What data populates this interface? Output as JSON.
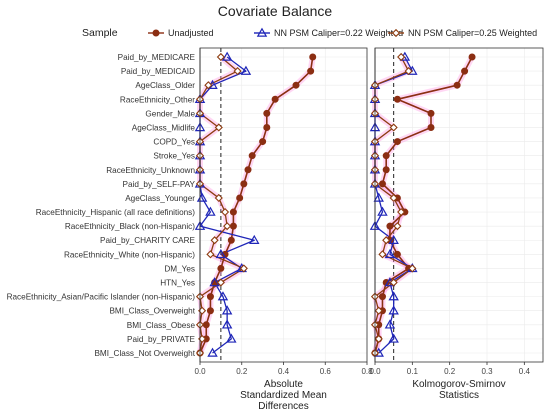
{
  "chart_data": {
    "type": "line",
    "title": "Covariate Balance",
    "legend": {
      "title": "Sample",
      "placement": "top",
      "entries": [
        "Unadjusted",
        "NN PSM Caliper=0.22 Weighted",
        "NN PSM Caliper=0.25 Weighted"
      ]
    },
    "colors": {
      "Unadjusted": "#8b2e12",
      "NN PSM Caliper=0.22 Weighted": "#1f26b8",
      "NN PSM Caliper=0.25 Weighted": "#8c3c10",
      "band": "#ff8ce0",
      "threshold": "#222222"
    },
    "categories": [
      "Paid_by_MEDICARE",
      "Paid_by_MEDICAID",
      "AgeClass_Older",
      "RaceEthnicity_Other",
      "Gender_Male",
      "AgeClass_Midlife",
      "COPD_Yes",
      "Stroke_Yes",
      "RaceEthnicity_Unknown",
      "Paid_by_SELF-PAY",
      "AgeClass_Younger",
      "RaceEthnicity_Hispanic (all race definitions)",
      "RaceEthnicity_Black (non-Hispanic)",
      "Paid_by_CHARITY CARE",
      "RaceEthnicity_White (non-Hispanic)",
      "DM_Yes",
      "HTN_Yes",
      "RaceEthnicity_Asian/Pacific Islander (non-Hispanic)",
      "BMI_Class_Overweight",
      "BMI_Class_Obese",
      "Paid_by_PRIVATE",
      "BMI_Class_Not Overweight"
    ],
    "panels": [
      {
        "xlabel": "Absolute Standardized Mean Differences",
        "xlabel_lines": [
          "Absolute",
          "Standardized Mean",
          "Differences"
        ],
        "xlim": [
          0,
          0.8
        ],
        "xticks": [
          0.0,
          0.2,
          0.4,
          0.6,
          0.8
        ],
        "tick_labels": [
          "0.0",
          "0.2",
          "0.4",
          "0.6",
          "0.8"
        ],
        "threshold": 0.1,
        "series": [
          {
            "name": "Unadjusted",
            "values": [
              0.54,
              0.53,
              0.46,
              0.36,
              0.32,
              0.32,
              0.3,
              0.25,
              0.23,
              0.21,
              0.19,
              0.16,
              0.16,
              0.15,
              0.12,
              0.1,
              0.07,
              0.05,
              0.05,
              0.03,
              0.03,
              0.0
            ]
          },
          {
            "name": "NN PSM Caliper=0.22 Weighted",
            "values": [
              0.13,
              0.22,
              0.06,
              0.0,
              0.0,
              0.0,
              0.0,
              0.0,
              0.0,
              0.0,
              0.01,
              0.05,
              0.0,
              0.26,
              0.1,
              0.2,
              0.07,
              0.11,
              0.13,
              0.13,
              0.15,
              0.06
            ]
          },
          {
            "name": "NN PSM Caliper=0.25 Weighted",
            "values": [
              0.1,
              0.18,
              0.04,
              0.0,
              0.0,
              0.09,
              0.0,
              0.0,
              0.0,
              0.0,
              0.09,
              0.12,
              0.13,
              0.07,
              0.05,
              0.21,
              0.1,
              0.0,
              0.01,
              0.0,
              0.01,
              0.0
            ]
          }
        ]
      },
      {
        "xlabel": "Kolmogorov-Smirnov Statistics",
        "xlabel_lines": [
          "Kolmogorov-Smirnov",
          "Statistics"
        ],
        "xlim": [
          0,
          0.45
        ],
        "xticks": [
          0.0,
          0.1,
          0.2,
          0.3,
          0.4
        ],
        "tick_labels": [
          "0.0",
          "0.1",
          "0.2",
          "0.3",
          "0.4"
        ],
        "threshold": 0.05,
        "series": [
          {
            "name": "Unadjusted",
            "values": [
              0.26,
              0.24,
              0.22,
              0.06,
              0.15,
              0.15,
              0.06,
              0.03,
              0.03,
              0.02,
              0.06,
              0.08,
              0.04,
              0.04,
              0.06,
              0.09,
              0.03,
              0.02,
              0.02,
              0.01,
              0.01,
              0.0
            ]
          },
          {
            "name": "NN PSM Caliper=0.22 Weighted",
            "values": [
              0.08,
              0.1,
              0.0,
              0.0,
              0.0,
              0.0,
              0.0,
              0.0,
              0.0,
              0.0,
              0.01,
              0.02,
              0.0,
              0.05,
              0.04,
              0.1,
              0.04,
              0.05,
              0.05,
              0.04,
              0.05,
              0.01
            ]
          },
          {
            "name": "NN PSM Caliper=0.25 Weighted",
            "values": [
              0.07,
              0.09,
              0.0,
              0.0,
              0.0,
              0.05,
              0.0,
              0.0,
              0.0,
              0.0,
              0.05,
              0.07,
              0.06,
              0.03,
              0.02,
              0.1,
              0.05,
              0.0,
              0.01,
              0.0,
              0.01,
              0.0
            ]
          }
        ]
      }
    ]
  }
}
